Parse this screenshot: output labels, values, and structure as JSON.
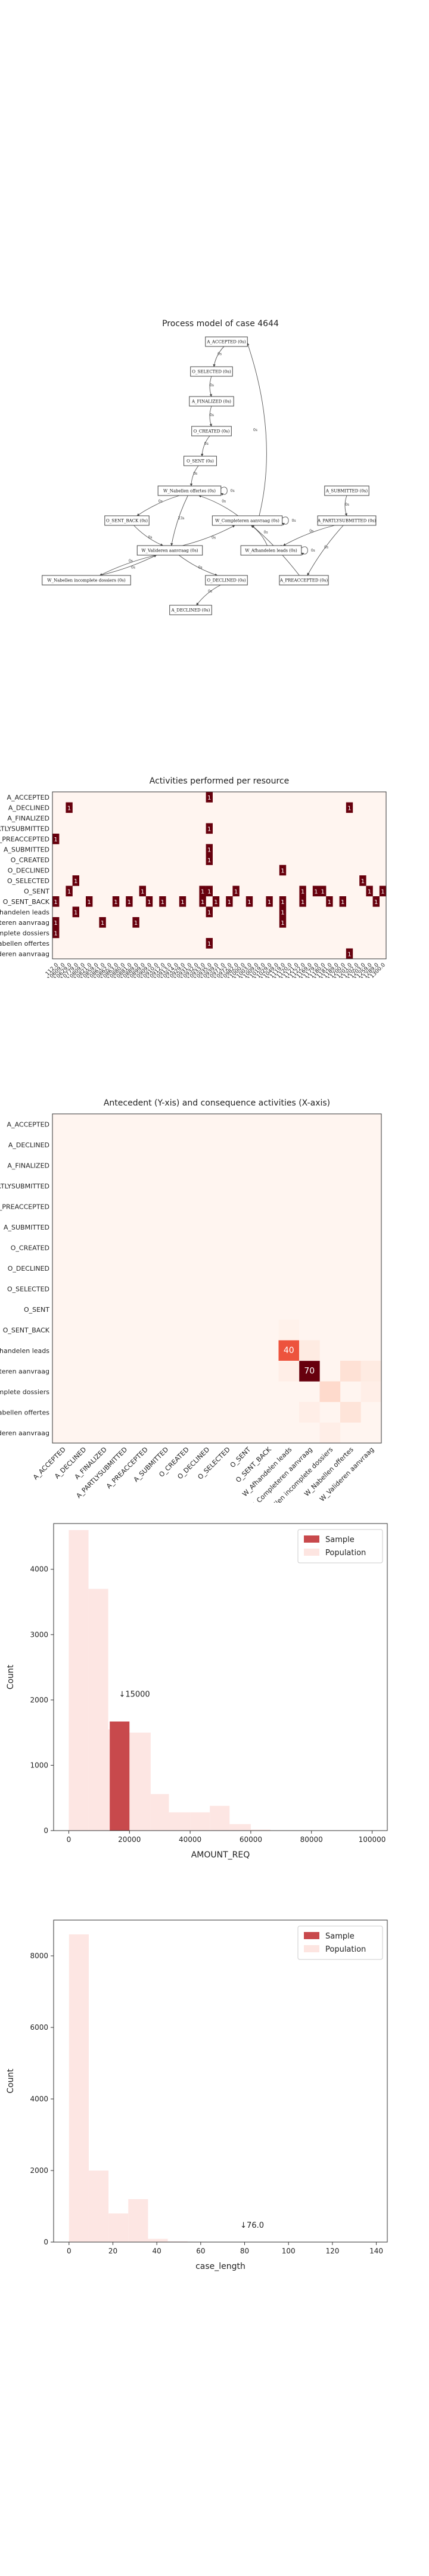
{
  "process_model": {
    "title": "Process model of case 4644",
    "nodes": [
      {
        "id": "accepted",
        "label": "A_ACCEPTED (0s)"
      },
      {
        "id": "selected",
        "label": "O_SELECTED (0s)"
      },
      {
        "id": "finalized",
        "label": "A_FINALIZED (0s)"
      },
      {
        "id": "created",
        "label": "O_CREATED (0s)"
      },
      {
        "id": "sent",
        "label": "O_SENT (0s)"
      },
      {
        "id": "nabellen",
        "label": "W_Nabellen offertes (0s)"
      },
      {
        "id": "completeren",
        "label": "W_Completeren aanvraag (0s)"
      },
      {
        "id": "submitted",
        "label": "A_SUBMITTED (0s)"
      },
      {
        "id": "sentback",
        "label": "O_SENT_BACK (0s)"
      },
      {
        "id": "partly",
        "label": "A_PARTLYSUBMITTED (0s)"
      },
      {
        "id": "valideren",
        "label": "W_Valideren aanvraag (0s)"
      },
      {
        "id": "afhandelen",
        "label": "W_Afhandelen leads (0s)"
      },
      {
        "id": "incompleet",
        "label": "W_Nabellen incomplete dossiers (0s)"
      },
      {
        "id": "odeclined",
        "label": "O_DECLINED (0s)"
      },
      {
        "id": "preaccepted",
        "label": "A_PREACCEPTED (0s)"
      },
      {
        "id": "adeclined",
        "label": "A_DECLINED (0s)"
      }
    ],
    "edges": [
      {
        "from": "accepted",
        "to": "selected",
        "label": "0s"
      },
      {
        "from": "selected",
        "to": "finalized",
        "label": "0s"
      },
      {
        "from": "finalized",
        "to": "created",
        "label": "0s"
      },
      {
        "from": "created",
        "to": "sent",
        "label": "0s"
      },
      {
        "from": "sent",
        "to": "nabellen",
        "label": "0s"
      },
      {
        "from": "nabellen",
        "to": "nabellen",
        "label": "0s"
      },
      {
        "from": "nabellen",
        "to": "valideren",
        "label": "23s"
      },
      {
        "from": "nabellen",
        "to": "sentback",
        "label": "0s"
      },
      {
        "from": "completeren",
        "to": "completeren",
        "label": "0s"
      },
      {
        "from": "completeren",
        "to": "accepted",
        "label": "0s"
      },
      {
        "from": "completeren",
        "to": "nabellen",
        "label": "0s"
      },
      {
        "from": "submitted",
        "to": "partly",
        "label": "0s"
      },
      {
        "from": "partly",
        "to": "afhandelen",
        "label": "0s"
      },
      {
        "from": "partly",
        "to": "preaccepted",
        "label": "0s"
      },
      {
        "from": "afhandelen",
        "to": "afhandelen",
        "label": "0s"
      },
      {
        "from": "afhandelen",
        "to": "completeren",
        "label": "0s"
      },
      {
        "from": "preaccepted",
        "to": "completeren",
        "label": "0s"
      },
      {
        "from": "valideren",
        "to": "incompleet",
        "label": "0s"
      },
      {
        "from": "incompleet",
        "to": "valideren",
        "label": "0s"
      },
      {
        "from": "valideren",
        "to": "odeclined",
        "label": "0s"
      },
      {
        "from": "valideren",
        "to": "completeren",
        "label": "0s"
      },
      {
        "from": "odeclined",
        "to": "adeclined",
        "label": "0s"
      },
      {
        "from": "sentback",
        "to": "valideren",
        "label": "0s"
      }
    ]
  },
  "chart_data": [
    {
      "type": "heatmap",
      "title": "Activities performed per resource",
      "rows": [
        "A_ACCEPTED",
        "A_DECLINED",
        "A_FINALIZED",
        "A_PARTLYSUBMITTED",
        "A_PREACCEPTED",
        "A_SUBMITTED",
        "O_CREATED",
        "O_DECLINED",
        "O_SELECTED",
        "O_SENT",
        "O_SENT_BACK",
        "W_Afhandelen leads",
        "W_Completeren aanvraag",
        "W_Nabellen incomplete dossiers",
        "W_Nabellen offertes",
        "W_Valideren aanvraag"
      ],
      "columns": [
        "112.0",
        "10609.0",
        "10629.0",
        "10779.0",
        "10809.0",
        "10821.0",
        "10859.0",
        "10861.0",
        "10862.0",
        "10863.0",
        "10880.0",
        "10881.0",
        "10889.0",
        "10899.0",
        "10909.0",
        "10910.0",
        "10912.0",
        "10913.0",
        "10914.0",
        "10929.0",
        "10931.0",
        "10932.0",
        "10933.0",
        "10935.0",
        "10939.0",
        "10971.0",
        "10972.0",
        "10982.0",
        "11000.0",
        "11003.0",
        "11009.0",
        "11019.0",
        "11029.0",
        "11049.0",
        "11119.0",
        "11120.0",
        "11121.0",
        "11122.0",
        "11169.0",
        "11179.0",
        "11180.0",
        "11181.0",
        "11189.0",
        "11200.0",
        "11201.0",
        "11202.0",
        "11203.0",
        "11259.0",
        "11289.0",
        "11300.0"
      ],
      "tick_labels": [
        "112.0",
        "10609.0",
        "10629.0",
        "10779.0",
        "10809.0",
        "10821.0",
        "10859.0",
        "10861.0",
        "10862.0",
        "10863.0",
        "10880.0",
        "10881.0",
        "10889.0",
        "10899.0",
        "10909.0",
        "10910.0",
        "10912.0",
        "10913.0",
        "10914.0",
        "10929.0",
        "10931.0",
        "10932.0",
        "10933.0",
        "10935.0",
        "10939.0",
        "10971.0",
        "10972.0",
        "10982.0",
        "11000.0",
        "11003.0",
        "11009.0",
        "11019.0",
        "11029.0",
        "11049.0",
        "11119.0",
        "11120.0",
        "11121.0",
        "11122.0",
        "11169.0",
        "11179.0",
        "11180.0",
        "11181.0",
        "11189.0",
        "11200.0",
        "11201.0",
        "11202.0",
        "11203.0",
        "11259.0",
        "11289.0",
        "11300.0"
      ],
      "cells": [
        {
          "r": 0,
          "c": 23,
          "v": 1
        },
        {
          "r": 1,
          "c": 2,
          "v": 1
        },
        {
          "r": 1,
          "c": 44,
          "v": 1
        },
        {
          "r": 3,
          "c": 23,
          "v": 1
        },
        {
          "r": 4,
          "c": 0,
          "v": 1
        },
        {
          "r": 5,
          "c": 23,
          "v": 1
        },
        {
          "r": 6,
          "c": 23,
          "v": 1
        },
        {
          "r": 7,
          "c": 34,
          "v": 1
        },
        {
          "r": 8,
          "c": 3,
          "v": 1
        },
        {
          "r": 8,
          "c": 46,
          "v": 1
        },
        {
          "r": 9,
          "c": 2,
          "v": 1
        },
        {
          "r": 9,
          "c": 13,
          "v": 1
        },
        {
          "r": 9,
          "c": 22,
          "v": 1
        },
        {
          "r": 9,
          "c": 23,
          "v": 1
        },
        {
          "r": 9,
          "c": 27,
          "v": 1
        },
        {
          "r": 9,
          "c": 37,
          "v": 1
        },
        {
          "r": 9,
          "c": 39,
          "v": 1
        },
        {
          "r": 9,
          "c": 40,
          "v": 1
        },
        {
          "r": 9,
          "c": 47,
          "v": 1
        },
        {
          "r": 9,
          "c": 49,
          "v": 1
        },
        {
          "r": 10,
          "c": 0,
          "v": 1
        },
        {
          "r": 10,
          "c": 5,
          "v": 1
        },
        {
          "r": 10,
          "c": 9,
          "v": 1
        },
        {
          "r": 10,
          "c": 11,
          "v": 1
        },
        {
          "r": 10,
          "c": 14,
          "v": 1
        },
        {
          "r": 10,
          "c": 16,
          "v": 1
        },
        {
          "r": 10,
          "c": 19,
          "v": 1
        },
        {
          "r": 10,
          "c": 22,
          "v": 1
        },
        {
          "r": 10,
          "c": 24,
          "v": 1
        },
        {
          "r": 10,
          "c": 26,
          "v": 1
        },
        {
          "r": 10,
          "c": 29,
          "v": 1
        },
        {
          "r": 10,
          "c": 32,
          "v": 1
        },
        {
          "r": 10,
          "c": 34,
          "v": 1
        },
        {
          "r": 10,
          "c": 37,
          "v": 1
        },
        {
          "r": 10,
          "c": 41,
          "v": 1
        },
        {
          "r": 10,
          "c": 43,
          "v": 1
        },
        {
          "r": 10,
          "c": 48,
          "v": 1
        },
        {
          "r": 11,
          "c": 3,
          "v": 1
        },
        {
          "r": 11,
          "c": 23,
          "v": 1
        },
        {
          "r": 11,
          "c": 34,
          "v": 1
        },
        {
          "r": 12,
          "c": 0,
          "v": 1
        },
        {
          "r": 12,
          "c": 7,
          "v": 1
        },
        {
          "r": 12,
          "c": 12,
          "v": 1
        },
        {
          "r": 12,
          "c": 34,
          "v": 1
        },
        {
          "r": 13,
          "c": 0,
          "v": 1
        },
        {
          "r": 14,
          "c": 23,
          "v": 1
        },
        {
          "r": 15,
          "c": 44,
          "v": 1
        }
      ]
    },
    {
      "type": "heatmap",
      "title": "Antecedent (Y-xis) and consequence activities (X-axis)",
      "rows": [
        "A_ACCEPTED",
        "A_DECLINED",
        "A_FINALIZED",
        "A_PARTLYSUBMITTED",
        "A_PREACCEPTED",
        "A_SUBMITTED",
        "O_CREATED",
        "O_DECLINED",
        "O_SELECTED",
        "O_SENT",
        "O_SENT_BACK",
        "W_Afhandelen leads",
        "W_Completeren aanvraag",
        "W_Nabellen incomplete dossiers",
        "W_Nabellen offertes",
        "W_Valideren aanvraag"
      ],
      "columns": [
        "A_ACCEPTED",
        "A_DECLINED",
        "A_FINALIZED",
        "A_PARTLYSUBMITTED",
        "A_PREACCEPTED",
        "A_SUBMITTED",
        "O_CREATED",
        "O_DECLINED",
        "O_SELECTED",
        "O_SENT",
        "O_SENT_BACK",
        "W_Afhandelen leads",
        "W_Completeren aanvraag",
        "W_Nabellen incomplete dossiers",
        "W_Nabellen offertes",
        "W_Valideren aanvraag"
      ],
      "cells": [
        {
          "r": 11,
          "c": 11,
          "v": 40,
          "label": "40"
        },
        {
          "r": 12,
          "c": 12,
          "v": 70,
          "label": "70"
        },
        {
          "r": 12,
          "c": 14,
          "v": 6
        },
        {
          "r": 13,
          "c": 13,
          "v": 8
        },
        {
          "r": 14,
          "c": 14,
          "v": 5
        },
        {
          "r": 11,
          "c": 12,
          "v": 3
        },
        {
          "r": 12,
          "c": 11,
          "v": 2
        },
        {
          "r": 12,
          "c": 15,
          "v": 3
        },
        {
          "r": 10,
          "c": 11,
          "v": 1
        },
        {
          "r": 13,
          "c": 15,
          "v": 2
        },
        {
          "r": 14,
          "c": 12,
          "v": 2
        },
        {
          "r": 15,
          "c": 13,
          "v": 2
        }
      ],
      "vmax": 70
    },
    {
      "type": "bar",
      "title": "",
      "xlabel": "AMOUNT_REQ",
      "ylabel": "Count",
      "xlim": [
        -5000,
        105000
      ],
      "ylim": [
        0,
        4700
      ],
      "xticks": [
        0,
        20000,
        40000,
        60000,
        80000,
        100000
      ],
      "yticks": [
        0,
        1000,
        2000,
        3000,
        4000
      ],
      "legend": "top-right",
      "series": [
        {
          "name": "Sample",
          "bins": [
            {
              "x0": 13500,
              "x1": 20000,
              "v": 1670
            }
          ]
        },
        {
          "name": "Population",
          "bins": [
            {
              "x0": 0,
              "x1": 6500,
              "v": 4600
            },
            {
              "x0": 6500,
              "x1": 13000,
              "v": 3700
            },
            {
              "x0": 13000,
              "x1": 20000,
              "v": 1550
            },
            {
              "x0": 20000,
              "x1": 27000,
              "v": 1500
            },
            {
              "x0": 27000,
              "x1": 33000,
              "v": 560
            },
            {
              "x0": 33000,
              "x1": 40000,
              "v": 280
            },
            {
              "x0": 40000,
              "x1": 46500,
              "v": 280
            },
            {
              "x0": 46500,
              "x1": 53000,
              "v": 380
            },
            {
              "x0": 53000,
              "x1": 60000,
              "v": 100
            },
            {
              "x0": 60000,
              "x1": 66500,
              "v": 15
            },
            {
              "x0": 66500,
              "x1": 100000,
              "v": 5
            }
          ]
        }
      ],
      "annotation": {
        "text": "↓15000",
        "x": 16500,
        "y": 2050
      }
    },
    {
      "type": "bar",
      "title": "",
      "xlabel": "case_length",
      "ylabel": "Count",
      "xlim": [
        -7,
        145
      ],
      "ylim": [
        0,
        9000
      ],
      "xticks": [
        0,
        20,
        40,
        60,
        80,
        100,
        120,
        140
      ],
      "yticks": [
        0,
        2000,
        4000,
        6000,
        8000
      ],
      "legend": "top-right",
      "series": [
        {
          "name": "Sample",
          "bins": []
        },
        {
          "name": "Population",
          "bins": [
            {
              "x0": 0,
              "x1": 9,
              "v": 8600
            },
            {
              "x0": 9,
              "x1": 18,
              "v": 2000
            },
            {
              "x0": 18,
              "x1": 27,
              "v": 800
            },
            {
              "x0": 27,
              "x1": 36,
              "v": 1200
            },
            {
              "x0": 36,
              "x1": 45,
              "v": 90
            },
            {
              "x0": 45,
              "x1": 54,
              "v": 20
            },
            {
              "x0": 54,
              "x1": 63,
              "v": 10
            }
          ]
        }
      ],
      "annotation": {
        "text": "↓76.0",
        "x": 78,
        "y": 400
      }
    }
  ],
  "colors": {
    "sample": "#c8494c",
    "population": "#fde5e1",
    "heat_low": "#fff5f0",
    "heat_high": "#67000d"
  }
}
